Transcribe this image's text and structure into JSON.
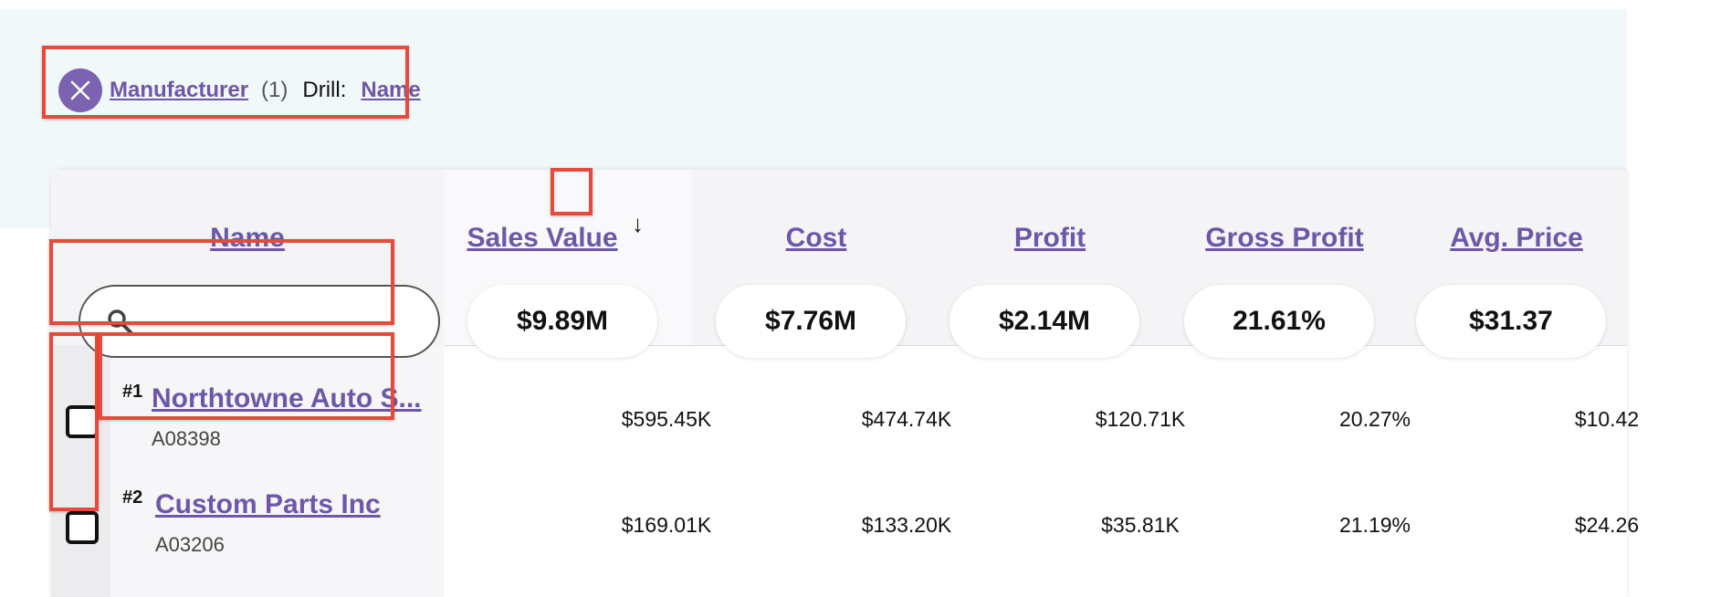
{
  "filter": {
    "field": "Manufacturer",
    "count": "(1)",
    "drill_label": "Drill:",
    "drill_value": "Name"
  },
  "table": {
    "columns": [
      "Name",
      "Sales Value",
      "Cost",
      "Profit",
      "Gross Profit",
      "Avg. Price"
    ],
    "sort_icon": "arrow-down-icon",
    "sort_glyph": "↓",
    "search": {
      "value": "",
      "placeholder": ""
    },
    "totals": [
      "$9.89M",
      "$7.76M",
      "$2.14M",
      "21.61%",
      "$31.37"
    ],
    "rows": [
      {
        "rank": "#1",
        "name": "Northtowne Auto S...",
        "code": "A08398",
        "values": [
          "$595.45K",
          "$474.74K",
          "$120.71K",
          "20.27%",
          "$10.42"
        ]
      },
      {
        "rank": "#2",
        "name": "Custom Parts Inc",
        "code": "A03206",
        "values": [
          "$169.01K",
          "$133.20K",
          "$35.81K",
          "21.19%",
          "$24.26"
        ]
      }
    ]
  },
  "colors": {
    "accent": "#6e56a8",
    "chip": "#7b63b2",
    "highlight": "#e8493a",
    "band": "#f1f8fa"
  }
}
